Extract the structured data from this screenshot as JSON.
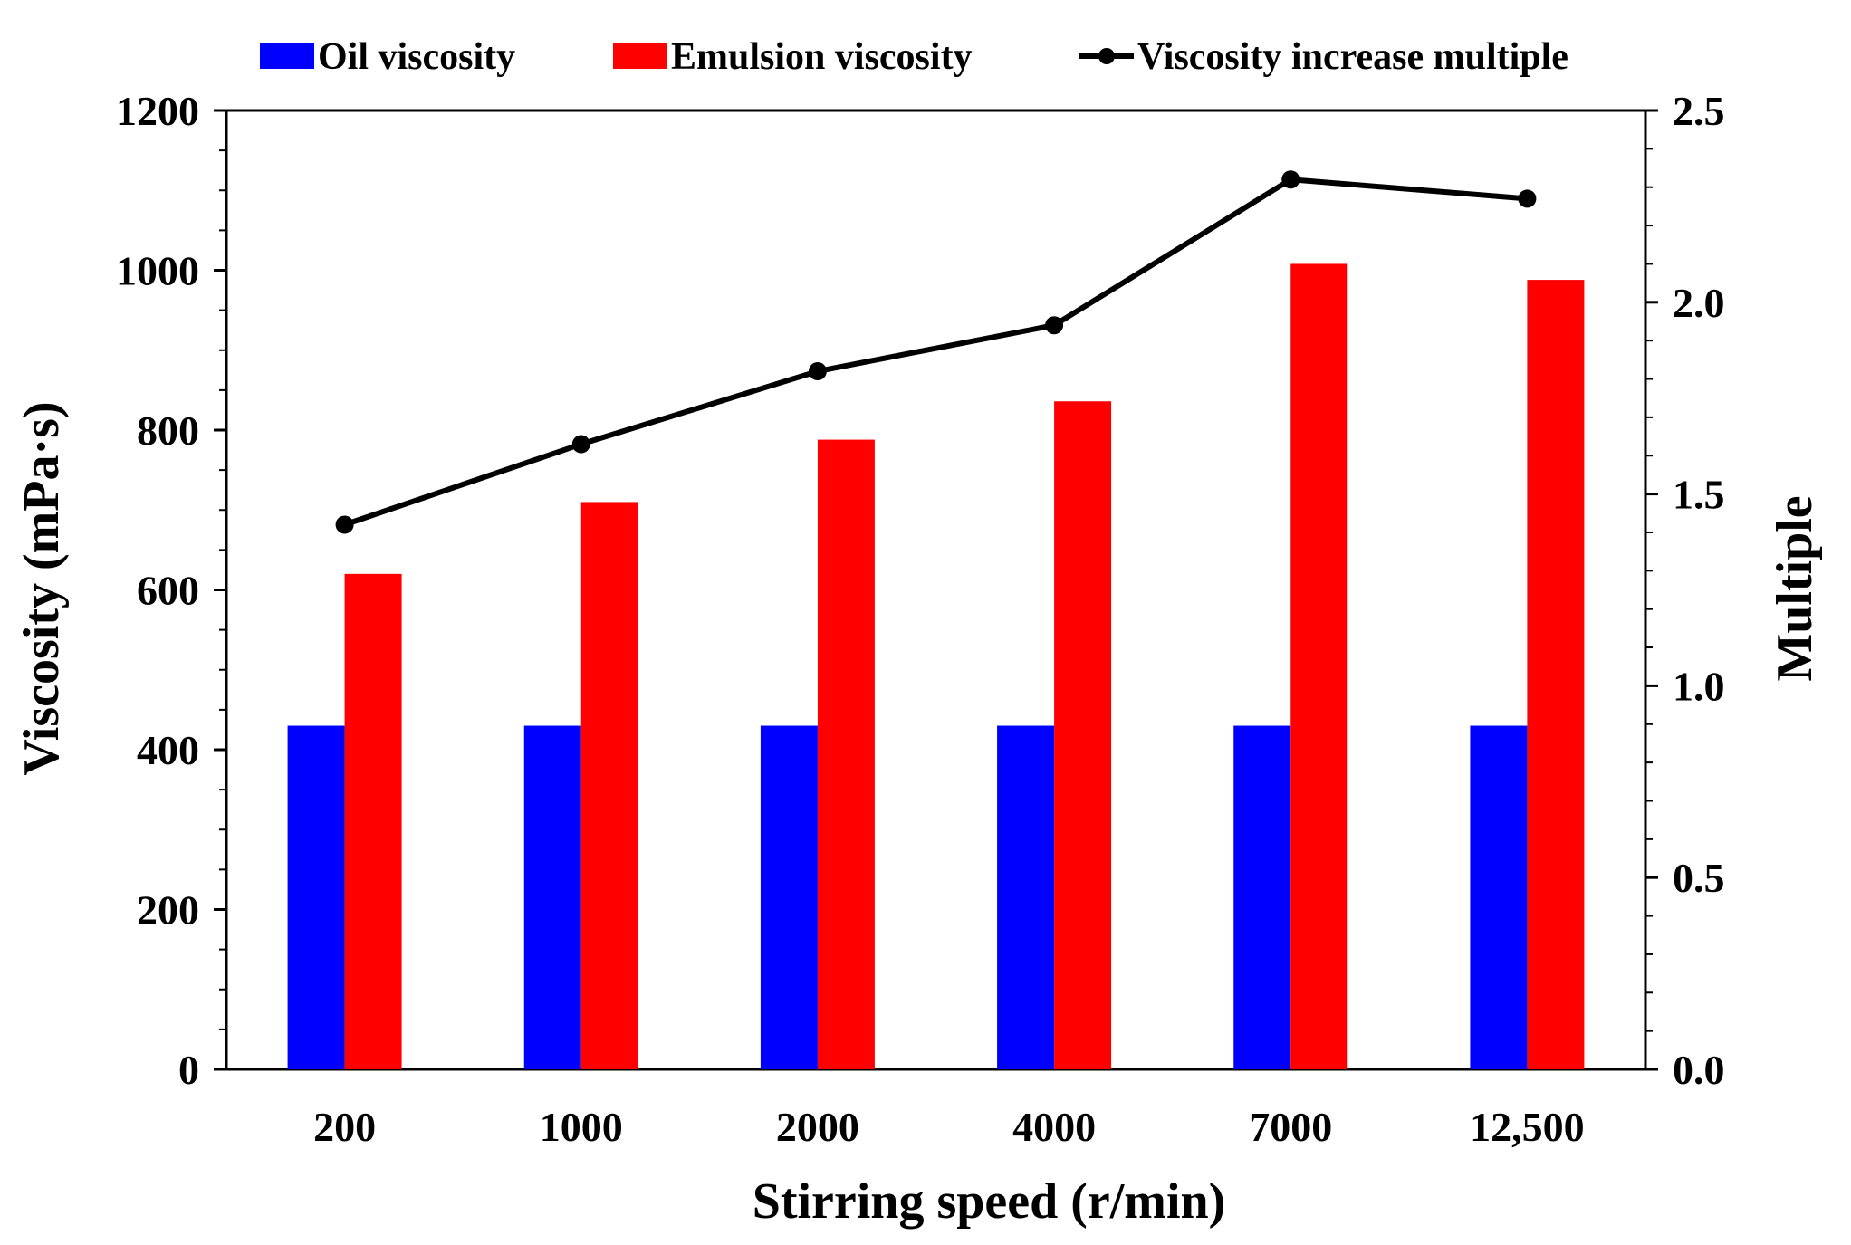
{
  "chart_data": {
    "type": "bar",
    "categories": [
      "200",
      "1000",
      "2000",
      "4000",
      "7000",
      "12,500"
    ],
    "series": [
      {
        "name": "Oil viscosity",
        "type": "bar",
        "axis": "left",
        "color": "#0000ff",
        "values": [
          430,
          430,
          430,
          430,
          430,
          430
        ]
      },
      {
        "name": "Emulsion viscosity",
        "type": "bar",
        "axis": "left",
        "color": "#ff0000",
        "values": [
          620,
          710,
          788,
          836,
          1008,
          988
        ]
      },
      {
        "name": "Viscosity increase multiple",
        "type": "line",
        "axis": "right",
        "color": "#000000",
        "values": [
          1.42,
          1.63,
          1.82,
          1.94,
          2.32,
          2.27
        ]
      }
    ],
    "xlabel": "Stirring speed (r/min)",
    "ylabel": "Viscosity (mPa·s)",
    "y2label": "Multiple",
    "ylim": [
      0,
      1200
    ],
    "y2lim": [
      0,
      2.5
    ],
    "yticks": [
      "0",
      "200",
      "400",
      "600",
      "800",
      "1000",
      "1200"
    ],
    "y2ticks": [
      "0.0",
      "0.5",
      "1.0",
      "1.5",
      "2.0",
      "2.5"
    ],
    "grid": false,
    "legend_position": "top"
  }
}
